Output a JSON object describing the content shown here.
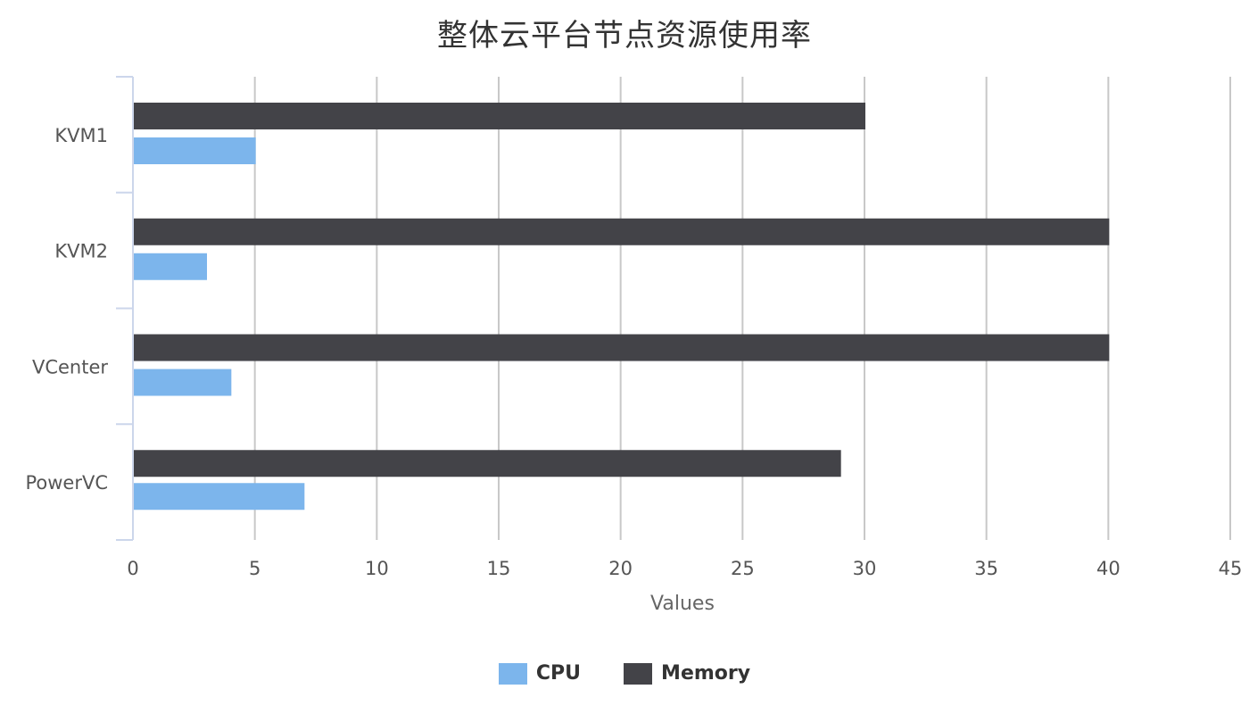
{
  "chart_data": {
    "type": "bar",
    "orientation": "horizontal",
    "title": "整体云平台节点资源使用率",
    "xlabel": "Values",
    "ylabel": "",
    "categories": [
      "KVM1",
      "KVM2",
      "VCenter",
      "PowerVC"
    ],
    "series": [
      {
        "name": "Memory",
        "color": "#434348",
        "values": [
          30,
          40,
          40,
          29
        ]
      },
      {
        "name": "CPU",
        "color": "#7cb5ec",
        "values": [
          5,
          3,
          4,
          7
        ]
      }
    ],
    "xlim": [
      0,
      45
    ],
    "xticks": [
      "0",
      "5",
      "10",
      "15",
      "20",
      "25",
      "30",
      "35",
      "40",
      "45"
    ],
    "grid": true,
    "legend_position": "bottom-center",
    "legend_order": [
      "CPU",
      "Memory"
    ]
  }
}
